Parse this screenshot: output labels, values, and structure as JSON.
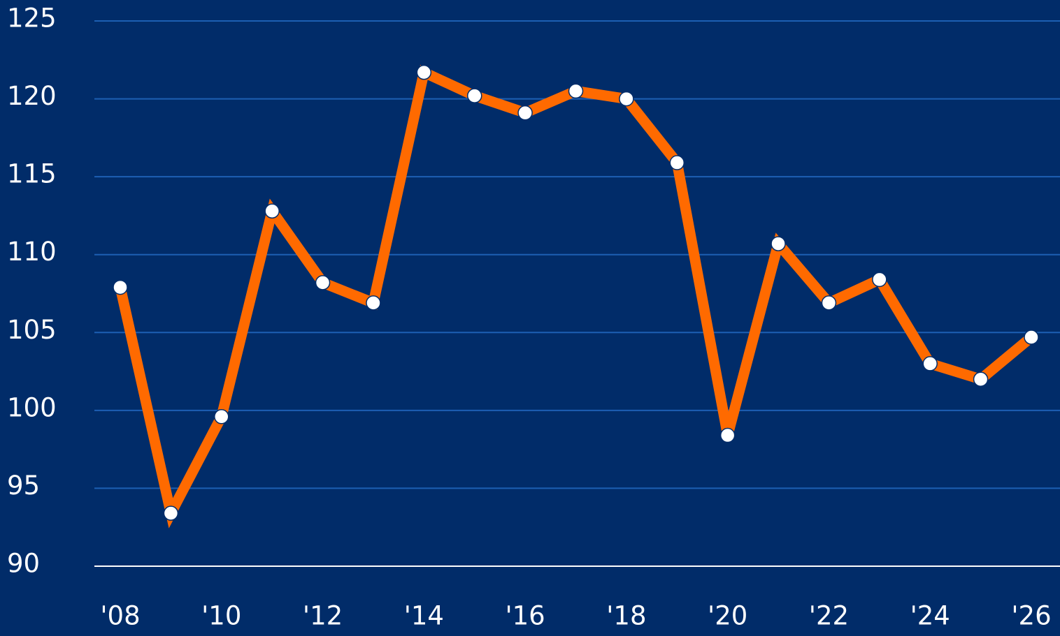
{
  "chart_data": {
    "type": "line",
    "categories": [
      "'08",
      null,
      "'10",
      null,
      "'12",
      null,
      "'14",
      null,
      "'16",
      null,
      "'18",
      null,
      "'20",
      null,
      "'22",
      null,
      "'24",
      null,
      "'26"
    ],
    "series": [
      {
        "color": "#ff6a00",
        "values": [
          107.9,
          93.4,
          99.6,
          112.8,
          108.2,
          106.9,
          121.7,
          120.2,
          119.1,
          120.5,
          120.0,
          115.9,
          98.4,
          110.7,
          106.9,
          108.4,
          103.0,
          102.0,
          104.7
        ]
      }
    ],
    "ylim": [
      90,
      125
    ],
    "yticks": [
      90,
      95,
      100,
      105,
      110,
      115,
      120,
      125
    ],
    "grid": true
  }
}
